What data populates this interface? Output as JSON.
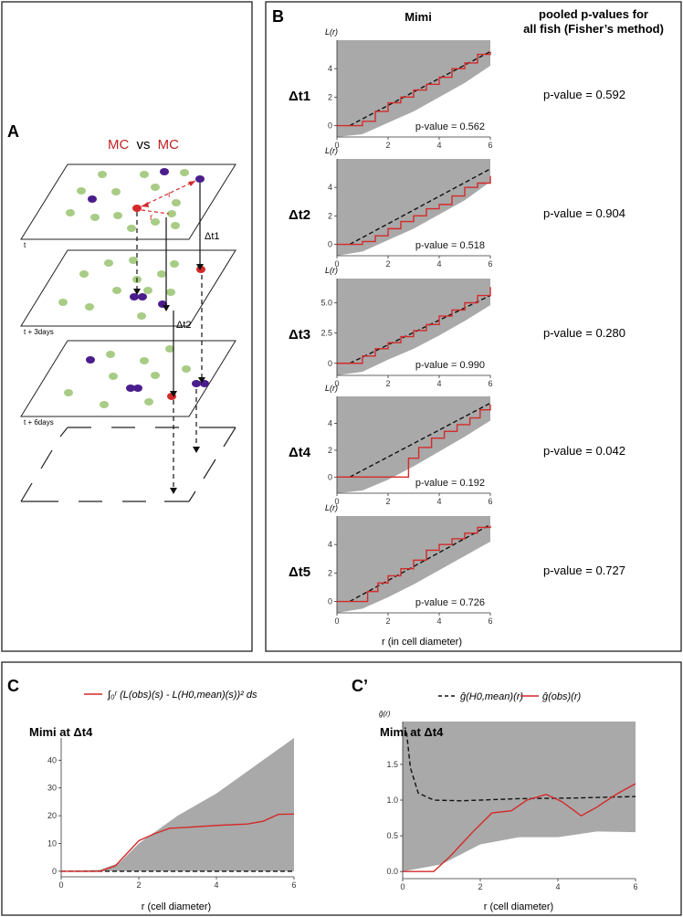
{
  "panel_a": {
    "label": "A",
    "title_mc1": "MC",
    "title_vs": "vs",
    "title_mc2": "MC",
    "r_label_1": "r",
    "r_label_2": "r",
    "dt1_label": "Δt1",
    "dt2_label": "Δt2",
    "plane_labels": [
      "t",
      "t + 3days",
      "t + 6days"
    ]
  },
  "panel_b": {
    "label": "B",
    "column_title": "Mimi",
    "pooled_title_line1": "pooled p-values for",
    "pooled_title_line2": "all fish (Fisher’s method)",
    "ylabel": "L(r)",
    "xlabel": "r (in cell diameter)",
    "rows": [
      {
        "dt": "Δt1",
        "plot_pvalue": "p-value = 0.562",
        "pooled_pvalue": "p-value = 0.592",
        "yticks": [
          "0",
          "2",
          "4"
        ],
        "xticks": [
          "0",
          "2",
          "4",
          "6"
        ]
      },
      {
        "dt": "Δt2",
        "plot_pvalue": "p-value = 0.518",
        "pooled_pvalue": "p-value = 0.904",
        "yticks": [
          "0",
          "2",
          "4"
        ],
        "xticks": [
          "0",
          "2",
          "4",
          "6"
        ]
      },
      {
        "dt": "Δt3",
        "plot_pvalue": "p-value = 0.990",
        "pooled_pvalue": "p-value = 0.280",
        "yticks": [
          "0",
          "2.5",
          "5.0"
        ],
        "xticks": [
          "0",
          "2",
          "4",
          "6"
        ]
      },
      {
        "dt": "Δt4",
        "plot_pvalue": "p-value = 0.192",
        "pooled_pvalue": "p-value = 0.042",
        "yticks": [
          "0",
          "2",
          "4"
        ],
        "xticks": [
          "0",
          "2",
          "4",
          "6"
        ]
      },
      {
        "dt": "Δt5",
        "plot_pvalue": "p-value = 0.726",
        "pooled_pvalue": "p-value = 0.727",
        "yticks": [
          "0",
          "2",
          "4"
        ],
        "xticks": [
          "0",
          "2",
          "4",
          "6"
        ]
      }
    ]
  },
  "panel_c": {
    "label": "C",
    "legend_formula": "∫₀ʳ (L(obs)(s) - L(H0,mean)(s))² ds",
    "plot_title": "Mimi at Δt4",
    "xlabel": "r (cell diameter)",
    "yticks": [
      "0",
      "10",
      "20",
      "30",
      "40"
    ],
    "xticks": [
      "0",
      "2",
      "4",
      "6"
    ]
  },
  "panel_c2": {
    "label": "C’",
    "legend_h0": "ĝ(H0,mean)(r)",
    "legend_obs": "ĝ(obs)(r)",
    "ylabel": "ĝ(r)",
    "plot_title": "Mimi at Δt4",
    "xlabel": "r (cell diameter)",
    "yticks": [
      "0.0",
      "0.5",
      "1.0",
      "1.5"
    ],
    "xticks": [
      "0",
      "2",
      "4",
      "6"
    ]
  },
  "colors": {
    "envelope": "#a9a9a9",
    "observed": "#d42a2a",
    "mean": "#111111",
    "cell_green": "#a8cc86",
    "cell_purple": "#4b1d8c",
    "cell_red": "#d42a2a"
  },
  "chart_data": [
    {
      "type": "line",
      "title": "Δt1",
      "ylabel": "L(r)",
      "xlabel": "r (in cell diameter)",
      "xlim": [
        0,
        6
      ],
      "ylim": [
        -0.8,
        6.0
      ],
      "series": [
        {
          "values_x": [
            0,
            0.5,
            1,
            1.5,
            2,
            2.5,
            3,
            3.5,
            4,
            4.5,
            5,
            5.5,
            6
          ],
          "values_y": [
            0,
            0,
            0.3,
            1.0,
            1.6,
            2.0,
            2.5,
            2.9,
            3.4,
            4.0,
            4.4,
            5.0,
            5.2
          ],
          "role": "observed"
        },
        {
          "values_x": [
            0.5,
            6
          ],
          "values_y": [
            0,
            5.2
          ],
          "role": "mean"
        },
        {
          "values_x": [
            0,
            1,
            2,
            3,
            4,
            5,
            6
          ],
          "values_y_upper": [
            6,
            6,
            6,
            6,
            6,
            6,
            6
          ],
          "values_y_lower": [
            -0.8,
            -0.6,
            0.2,
            1.0,
            2.0,
            3.0,
            4.2
          ],
          "role": "envelope"
        }
      ]
    },
    {
      "type": "line",
      "title": "Δt2",
      "ylabel": "L(r)",
      "xlabel": "r (in cell diameter)",
      "xlim": [
        0,
        6
      ],
      "ylim": [
        -0.8,
        6.0
      ],
      "series": [
        {
          "values_x": [
            0,
            0.5,
            1,
            1.5,
            2,
            2.5,
            3,
            3.5,
            4,
            4.5,
            5,
            5.5,
            6
          ],
          "values_y": [
            0,
            0,
            0.2,
            0.6,
            1.1,
            1.6,
            2.0,
            2.5,
            2.8,
            3.4,
            4.0,
            4.3,
            4.8
          ],
          "role": "observed"
        },
        {
          "values_x": [
            0.5,
            6
          ],
          "values_y": [
            0,
            5.3
          ],
          "role": "mean"
        },
        {
          "values_x": [
            0,
            1,
            2,
            3,
            4,
            5,
            6
          ],
          "values_y_upper": [
            6,
            6,
            6,
            6,
            6,
            6,
            6
          ],
          "values_y_lower": [
            -0.8,
            -0.5,
            0.3,
            1.1,
            2.1,
            3.1,
            4.4
          ],
          "role": "envelope"
        }
      ]
    },
    {
      "type": "line",
      "title": "Δt3",
      "ylabel": "L(r)",
      "xlabel": "r (in cell diameter)",
      "xlim": [
        0,
        6
      ],
      "ylim": [
        -1.0,
        7.0
      ],
      "series": [
        {
          "values_x": [
            0,
            0.5,
            1,
            1.5,
            2,
            2.5,
            3,
            3.5,
            4,
            4.5,
            5,
            5.5,
            6
          ],
          "values_y": [
            0,
            0,
            0.6,
            1.2,
            1.7,
            2.2,
            2.7,
            3.2,
            3.9,
            4.4,
            5.0,
            5.6,
            6.3
          ],
          "role": "observed"
        },
        {
          "values_x": [
            0.5,
            6
          ],
          "values_y": [
            0,
            5.6
          ],
          "role": "mean"
        },
        {
          "values_x": [
            0,
            1,
            2,
            3,
            4,
            5,
            6
          ],
          "values_y_upper": [
            7,
            7,
            7,
            7,
            7,
            7,
            7
          ],
          "values_y_lower": [
            -1.0,
            -0.7,
            0.3,
            1.2,
            2.3,
            3.5,
            4.8
          ],
          "role": "envelope"
        }
      ]
    },
    {
      "type": "line",
      "title": "Δt4",
      "ylabel": "L(r)",
      "xlabel": "r (in cell diameter)",
      "xlim": [
        0,
        6
      ],
      "ylim": [
        -1.2,
        6.0
      ],
      "series": [
        {
          "values_x": [
            0,
            2.3,
            2.8,
            3.2,
            3.7,
            4.2,
            4.7,
            5.2,
            5.6,
            6
          ],
          "values_y": [
            0,
            0,
            1.4,
            2.2,
            2.9,
            3.4,
            3.9,
            4.4,
            5.0,
            5.4
          ],
          "role": "observed"
        },
        {
          "values_x": [
            0.5,
            6
          ],
          "values_y": [
            0,
            5.5
          ],
          "role": "mean"
        },
        {
          "values_x": [
            0,
            1,
            2,
            3,
            4,
            5,
            6
          ],
          "values_y_upper": [
            6,
            6,
            6,
            6,
            6,
            6,
            6
          ],
          "values_y_lower": [
            -1.2,
            -1.0,
            -0.2,
            0.8,
            1.9,
            3.0,
            4.2
          ],
          "role": "envelope"
        }
      ]
    },
    {
      "type": "line",
      "title": "Δt5",
      "ylabel": "L(r)",
      "xlabel": "r (in cell diameter)",
      "xlim": [
        0,
        6
      ],
      "ylim": [
        -0.8,
        6.0
      ],
      "series": [
        {
          "values_x": [
            0,
            0.8,
            1.2,
            1.6,
            2,
            2.5,
            3,
            3.5,
            4,
            4.5,
            5,
            5.5,
            6
          ],
          "values_y": [
            0,
            0,
            0.7,
            1.3,
            1.8,
            2.3,
            2.9,
            3.6,
            4.0,
            4.4,
            4.8,
            5.2,
            5.3
          ],
          "role": "observed"
        },
        {
          "values_x": [
            0.5,
            6
          ],
          "values_y": [
            0,
            5.4
          ],
          "role": "mean"
        },
        {
          "values_x": [
            0,
            1,
            2,
            3,
            4,
            5,
            6
          ],
          "values_y_upper": [
            6,
            6,
            6,
            6,
            6,
            6,
            6
          ],
          "values_y_lower": [
            -0.8,
            -0.5,
            0.3,
            1.2,
            2.2,
            3.2,
            4.2
          ],
          "role": "envelope"
        }
      ]
    },
    {
      "type": "line",
      "title": "Mimi at Δt4",
      "xlabel": "r (cell diameter)",
      "xlim": [
        0,
        6
      ],
      "ylim": [
        -2,
        48
      ],
      "series": [
        {
          "values_x": [
            0,
            1,
            1.4,
            1.8,
            2.0,
            2.4,
            2.8,
            3.2,
            4.0,
            4.8,
            5.2,
            5.6,
            6
          ],
          "values_y": [
            0,
            0,
            2,
            8,
            11,
            13.5,
            15.5,
            15.8,
            16.5,
            17,
            18,
            20.5,
            20.6
          ],
          "role": "observed"
        },
        {
          "values_x": [
            0,
            6
          ],
          "values_y": [
            0,
            0
          ],
          "role": "mean"
        },
        {
          "values_x": [
            0,
            1,
            1.5,
            2,
            3,
            4,
            5,
            6
          ],
          "values_y_upper": [
            0,
            0.5,
            3,
            10,
            20,
            28,
            38,
            48
          ],
          "values_y_lower": [
            0,
            0,
            0,
            0,
            0,
            0,
            0,
            0
          ],
          "role": "envelope"
        }
      ]
    },
    {
      "type": "line",
      "title": "Mimi at Δt4",
      "ylabel": "g(r)",
      "xlabel": "r (cell diameter)",
      "xlim": [
        0,
        6
      ],
      "ylim": [
        -0.1,
        2.1
      ],
      "series": [
        {
          "values_x": [
            0,
            0.8,
            1.2,
            1.8,
            2.3,
            2.8,
            3.2,
            3.7,
            4.1,
            4.6,
            5.0,
            5.5,
            6
          ],
          "values_y": [
            0,
            0,
            0.2,
            0.55,
            0.82,
            0.85,
            1.0,
            1.08,
            0.98,
            0.78,
            0.9,
            1.08,
            1.23
          ],
          "role": "observed"
        },
        {
          "values_x": [
            0.1,
            0.2,
            0.4,
            0.8,
            1.5,
            3,
            4.5,
            6
          ],
          "values_y": [
            1.95,
            1.45,
            1.1,
            1.0,
            0.99,
            1.02,
            1.03,
            1.05
          ],
          "role": "mean"
        },
        {
          "values_x": [
            0,
            1,
            2,
            3,
            4,
            5,
            6
          ],
          "values_y_upper": [
            2.1,
            2.1,
            2.1,
            2.1,
            2.1,
            2.1,
            2.1
          ],
          "values_y_lower": [
            0,
            0.1,
            0.38,
            0.48,
            0.48,
            0.56,
            0.55
          ],
          "role": "envelope"
        }
      ]
    }
  ]
}
